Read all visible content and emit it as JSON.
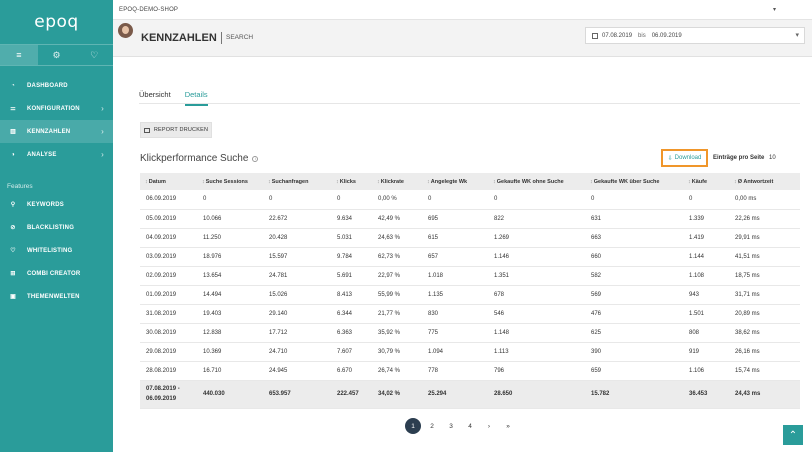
{
  "app": {
    "logo": "epoq",
    "shop": "EPOQ-DEMO-SHOP"
  },
  "sidebar": {
    "tabs": [
      {
        "icon": "menu-icon",
        "glyph": "≡"
      },
      {
        "icon": "gear-icon",
        "glyph": "⚙"
      },
      {
        "icon": "bulb-icon",
        "glyph": "♡"
      }
    ],
    "items": [
      {
        "label": "DASHBOARD",
        "icon": "dashboard-icon",
        "glyph": "◔",
        "chevron": ""
      },
      {
        "label": "KONFIGURATION",
        "icon": "sliders-icon",
        "glyph": "⚌",
        "chevron": "›"
      },
      {
        "label": "KENNZAHLEN",
        "icon": "chart-icon",
        "glyph": "▥",
        "chevron": "›"
      },
      {
        "label": "ANALYSE",
        "icon": "pie-chart-icon",
        "glyph": "◑",
        "chevron": "›"
      }
    ],
    "features_label": "Features",
    "features": [
      {
        "label": "KEYWORDS",
        "icon": "search-icon",
        "glyph": "⚲"
      },
      {
        "label": "BLACKLISTING",
        "icon": "ban-icon",
        "glyph": "⊘"
      },
      {
        "label": "WHITELISTING",
        "icon": "heart-icon",
        "glyph": "♡"
      },
      {
        "label": "COMBI CREATOR",
        "icon": "combi-icon",
        "glyph": "⊞"
      },
      {
        "label": "THEMENWELTEN",
        "icon": "image-icon",
        "glyph": "▣"
      }
    ]
  },
  "header": {
    "title": "KENNZAHLEN",
    "subtitle": "SEARCH",
    "date_from": "07.08.2019",
    "date_sep": "bis",
    "date_to": "06.09.2019"
  },
  "tabs": [
    {
      "label": "Übersicht",
      "active": false
    },
    {
      "label": "Details",
      "active": true
    }
  ],
  "report_button": "REPORT DRUCKEN",
  "section_title": "Klickperformance Suche",
  "download_label": "Download",
  "per_page_label": "Einträge pro Seite",
  "per_page_value": "10",
  "table": {
    "columns": [
      "Datum",
      "Suche Sessions",
      "Suchanfragen",
      "Klicks",
      "Klickrate",
      "Angelegte Wk",
      "Gekaufte WK ohne Suche",
      "Gekaufte WK über Suche",
      "Käufe",
      "Ø Antwortzeit"
    ],
    "rows": [
      [
        "06.09.2019",
        "0",
        "0",
        "0",
        "0,00 %",
        "0",
        "0",
        "0",
        "0",
        "0,00 ms"
      ],
      [
        "05.09.2019",
        "10.066",
        "22.672",
        "9.634",
        "42,49 %",
        "695",
        "822",
        "631",
        "1.339",
        "22,26 ms"
      ],
      [
        "04.09.2019",
        "11.250",
        "20.428",
        "5.031",
        "24,63 %",
        "615",
        "1.269",
        "663",
        "1.419",
        "29,91 ms"
      ],
      [
        "03.09.2019",
        "18.976",
        "15.597",
        "9.784",
        "62,73 %",
        "657",
        "1.146",
        "660",
        "1.144",
        "41,51 ms"
      ],
      [
        "02.09.2019",
        "13.654",
        "24.781",
        "5.691",
        "22,97 %",
        "1.018",
        "1.351",
        "582",
        "1.108",
        "18,75 ms"
      ],
      [
        "01.09.2019",
        "14.494",
        "15.026",
        "8.413",
        "55,99 %",
        "1.135",
        "678",
        "569",
        "943",
        "31,71 ms"
      ],
      [
        "31.08.2019",
        "19.403",
        "29.140",
        "6.344",
        "21,77 %",
        "830",
        "546",
        "476",
        "1.501",
        "20,89 ms"
      ],
      [
        "30.08.2019",
        "12.838",
        "17.712",
        "6.363",
        "35,92 %",
        "775",
        "1.148",
        "625",
        "808",
        "38,62 ms"
      ],
      [
        "29.08.2019",
        "10.369",
        "24.710",
        "7.607",
        "30,79 %",
        "1.094",
        "1.113",
        "390",
        "919",
        "26,16 ms"
      ],
      [
        "28.08.2019",
        "16.710",
        "24.945",
        "6.670",
        "26,74 %",
        "778",
        "796",
        "659",
        "1.106",
        "15,74 ms"
      ]
    ],
    "total": {
      "date_line1": "07.08.2019 -",
      "date_line2": "06.09.2019",
      "values": [
        "440.030",
        "653.957",
        "222.457",
        "34,02 %",
        "25.294",
        "28.650",
        "15.782",
        "36.453",
        "24,43 ms"
      ]
    }
  },
  "pagination": [
    "1",
    "2",
    "3",
    "4",
    "›",
    "»"
  ],
  "colors": {
    "accent": "#2a9c9a",
    "highlight": "#f0962a",
    "active_page": "#2c3e50"
  }
}
